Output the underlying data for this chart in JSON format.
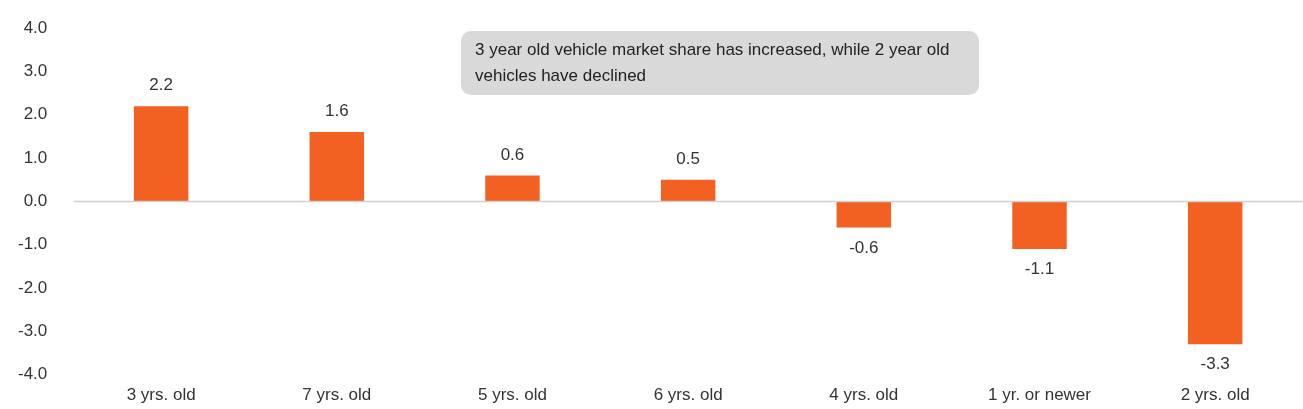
{
  "chart_data": {
    "type": "bar",
    "categories": [
      "3 yrs. old",
      "7 yrs. old",
      "5 yrs. old",
      "6 yrs. old",
      "4 yrs. old",
      "1 yr. or newer",
      "2 yrs. old"
    ],
    "values": [
      2.2,
      1.6,
      0.6,
      0.5,
      -0.6,
      -1.1,
      -3.3
    ],
    "color": "#f26122",
    "ylim": [
      -4,
      4
    ],
    "yticks": [
      {
        "value": -4,
        "label": "-4.0"
      },
      {
        "value": -3,
        "label": "-3.0"
      },
      {
        "value": -2,
        "label": "-2.0"
      },
      {
        "value": -1,
        "label": "-1.0"
      },
      {
        "value": 0,
        "label": "0.0"
      },
      {
        "value": 1,
        "label": "1.0"
      },
      {
        "value": 2,
        "label": "2.0"
      },
      {
        "value": 3,
        "label": "3.0"
      },
      {
        "value": 4,
        "label": "4.0"
      }
    ],
    "data_labels": true,
    "annotations": [
      {
        "text": "3 year old vehicle market share has increased, while 2 year old vehicles have declined"
      }
    ]
  }
}
